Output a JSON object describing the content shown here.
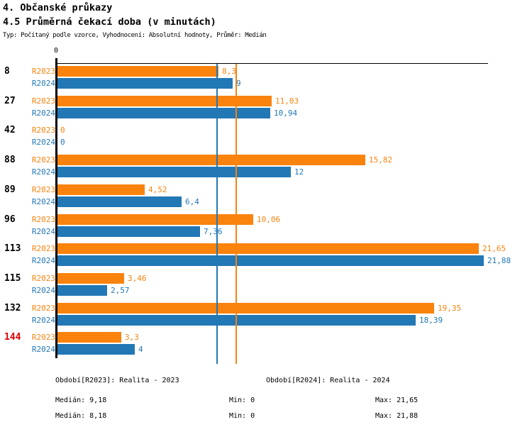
{
  "header": {
    "title": "4. Občanské průkazy",
    "subtitle": "4.5 Průměrná čekací doba (v minutách)",
    "meta": "Typ: Počítaný podle vzorce, Vyhodnocení: Absolutní hodnoty, Průměr: Medián"
  },
  "chart_data": {
    "type": "bar",
    "orientation": "horizontal",
    "title": "4.5 Průměrná čekací doba (v minutách)",
    "xlabel": "",
    "ylabel": "",
    "xlim": [
      0,
      22.1
    ],
    "origin_tick_label": "0",
    "grid": false,
    "series_labels": {
      "r2023": "R2023",
      "r2024": "R2024"
    },
    "categories": [
      "8",
      "27",
      "42",
      "88",
      "89",
      "96",
      "113",
      "115",
      "132",
      "144"
    ],
    "rows": [
      {
        "category": "8",
        "highlight": false,
        "r2023": 8.3,
        "r2023_label": "8,3",
        "r2024": 9,
        "r2024_label": "9"
      },
      {
        "category": "27",
        "highlight": false,
        "r2023": 11.03,
        "r2023_label": "11,03",
        "r2024": 10.94,
        "r2024_label": "10,94"
      },
      {
        "category": "42",
        "highlight": false,
        "r2023": 0,
        "r2023_label": "0",
        "r2024": 0,
        "r2024_label": "0"
      },
      {
        "category": "88",
        "highlight": false,
        "r2023": 15.82,
        "r2023_label": "15,82",
        "r2024": 12,
        "r2024_label": "12"
      },
      {
        "category": "89",
        "highlight": false,
        "r2023": 4.52,
        "r2023_label": "4,52",
        "r2024": 6.4,
        "r2024_label": "6,4"
      },
      {
        "category": "96",
        "highlight": false,
        "r2023": 10.06,
        "r2023_label": "10,06",
        "r2024": 7.36,
        "r2024_label": "7,36"
      },
      {
        "category": "113",
        "highlight": false,
        "r2023": 21.65,
        "r2023_label": "21,65",
        "r2024": 21.88,
        "r2024_label": "21,88"
      },
      {
        "category": "115",
        "highlight": false,
        "r2023": 3.46,
        "r2023_label": "3,46",
        "r2024": 2.57,
        "r2024_label": "2,57"
      },
      {
        "category": "132",
        "highlight": false,
        "r2023": 19.35,
        "r2023_label": "19,35",
        "r2024": 18.39,
        "r2024_label": "18,39"
      },
      {
        "category": "144",
        "highlight": true,
        "r2023": 3.3,
        "r2023_label": "3,3",
        "r2024": 4,
        "r2024_label": "4"
      }
    ],
    "reference_lines": [
      {
        "name": "median-r2024",
        "value": 8.18,
        "color": "#2277B5"
      },
      {
        "name": "median-r2023",
        "value": 9.18,
        "color": "#F9830D"
      }
    ],
    "colors": {
      "r2023": "#F9830D",
      "r2024": "#2277B5",
      "highlight": "#DD0000",
      "axis": "#000000"
    },
    "legend_position": "bottom"
  },
  "legend": {
    "r2023": "Období[R2023]: Realita - 2023",
    "r2024": "Období[R2024]: Realita - 2024"
  },
  "stats": {
    "r2023": {
      "median": "Medián: 9,18",
      "min": "Min: 0",
      "max": "Max: 21,65"
    },
    "r2024": {
      "median": "Medián: 8,18",
      "min": "Min: 0",
      "max": "Max: 21,88"
    }
  }
}
